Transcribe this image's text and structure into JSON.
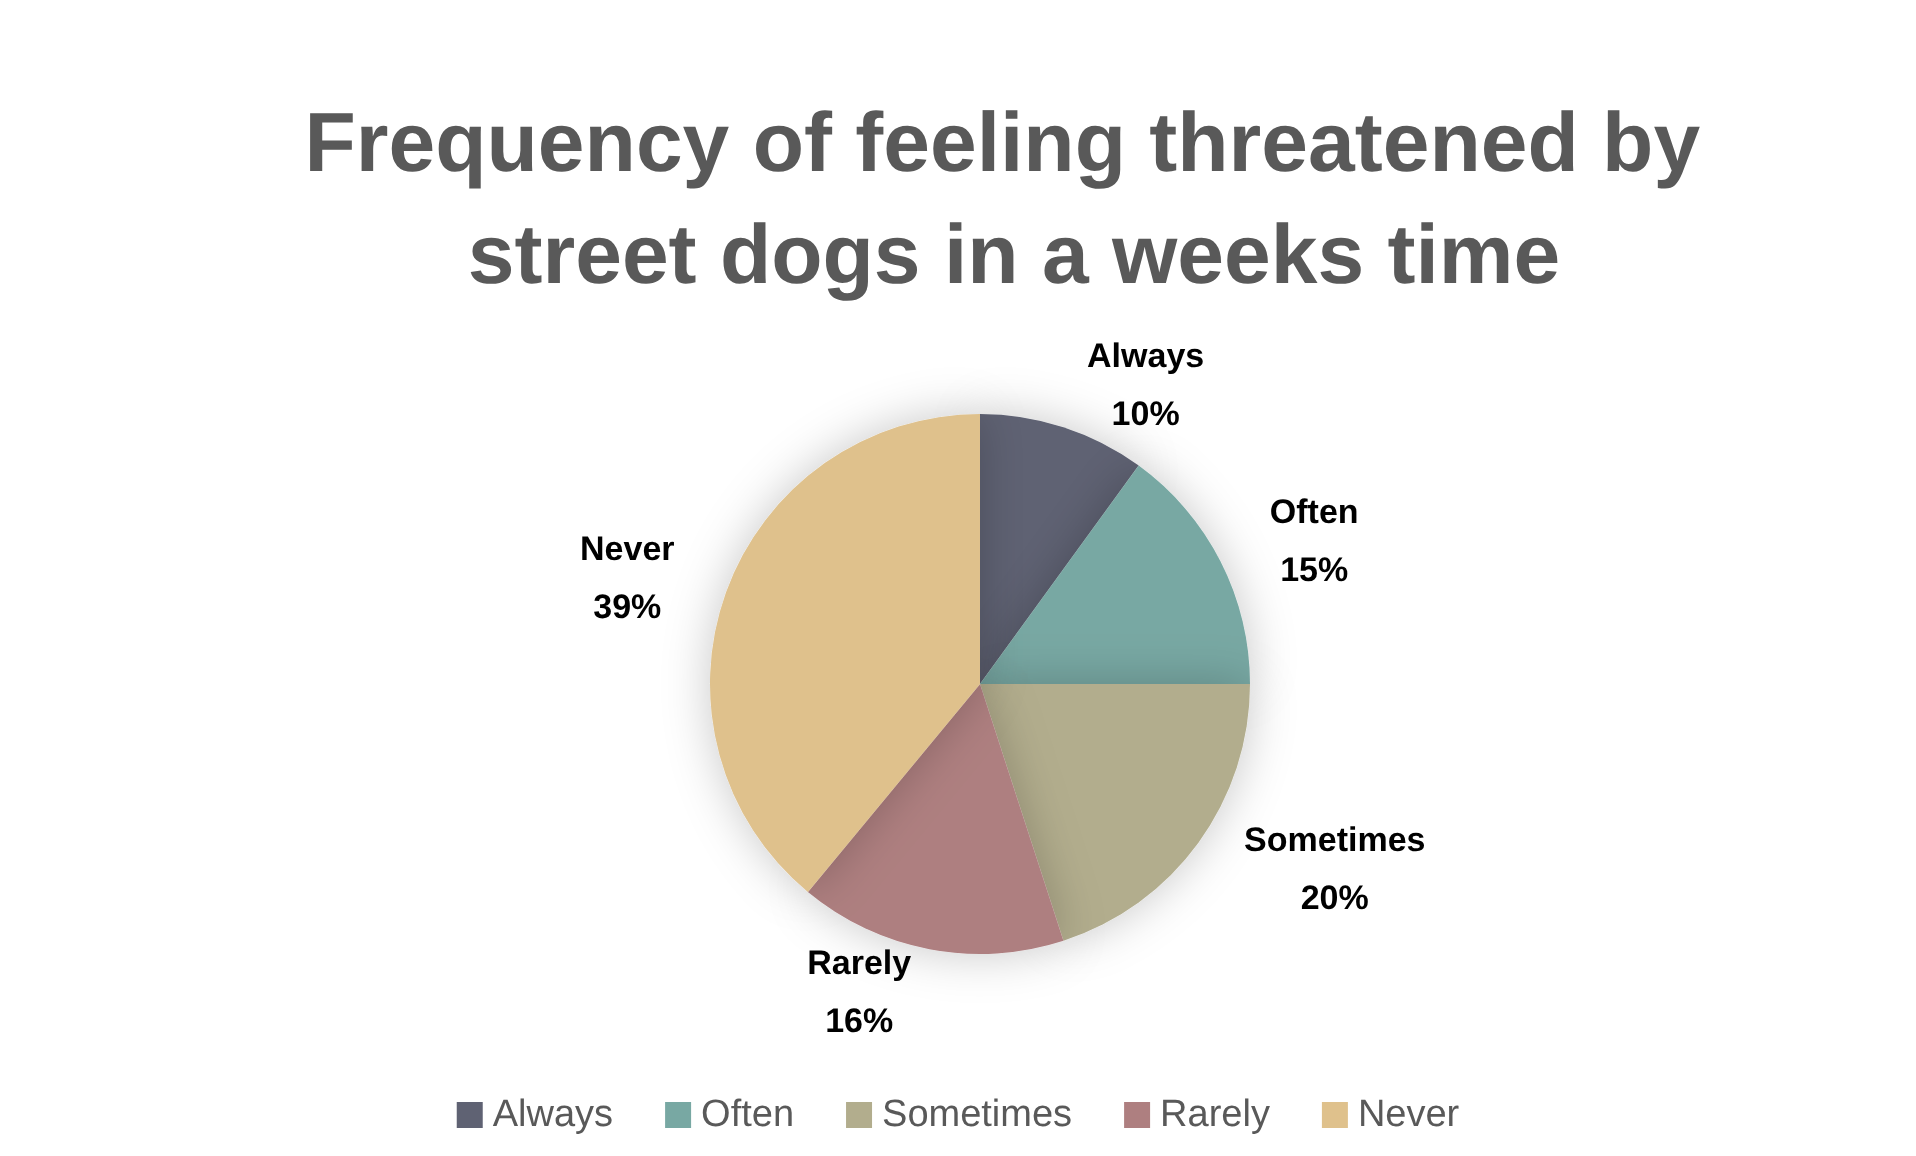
{
  "chart_data": {
    "type": "pie",
    "title": "Frequency of feeling threatened by street dogs in a weeks time",
    "categories": [
      "Always",
      "Often",
      "Sometimes",
      "Rarely",
      "Never"
    ],
    "values": [
      10,
      15,
      20,
      16,
      39
    ],
    "value_labels": [
      "10%",
      "15%",
      "20%",
      "16%",
      "39%"
    ],
    "colors": [
      "#5f6273",
      "#78a8a3",
      "#b2ad8d",
      "#ae7f80",
      "#dfc18c"
    ],
    "legend": "bottom"
  }
}
